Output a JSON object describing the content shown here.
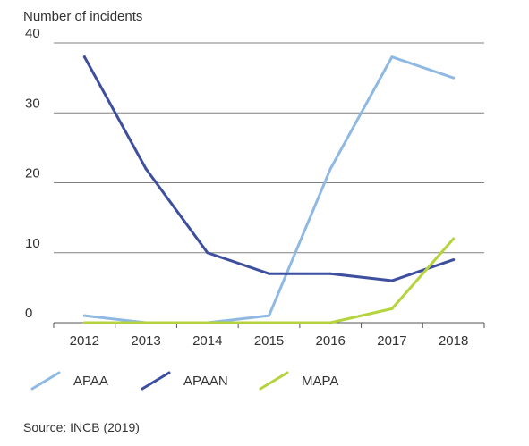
{
  "chart_data": {
    "type": "line",
    "ylabel": "Number of incidents",
    "xlabel": "",
    "x": [
      "2012",
      "2013",
      "2014",
      "2015",
      "2016",
      "2017",
      "2018"
    ],
    "ylim": [
      0,
      40
    ],
    "yticks": [
      0,
      10,
      20,
      30,
      40
    ],
    "grid": "horizontal",
    "legend_position": "bottom",
    "series": [
      {
        "name": "APAA",
        "color": "#8fb9e3",
        "values": [
          1,
          0,
          0,
          1,
          22,
          38,
          35
        ]
      },
      {
        "name": "APAAN",
        "color": "#3d4f9e",
        "values": [
          38,
          22,
          10,
          7,
          7,
          6,
          9
        ]
      },
      {
        "name": "MAPA",
        "color": "#b5d33d",
        "values": [
          0,
          0,
          0,
          0,
          0,
          2,
          12
        ]
      }
    ]
  },
  "source": "Source: INCB (2019)"
}
